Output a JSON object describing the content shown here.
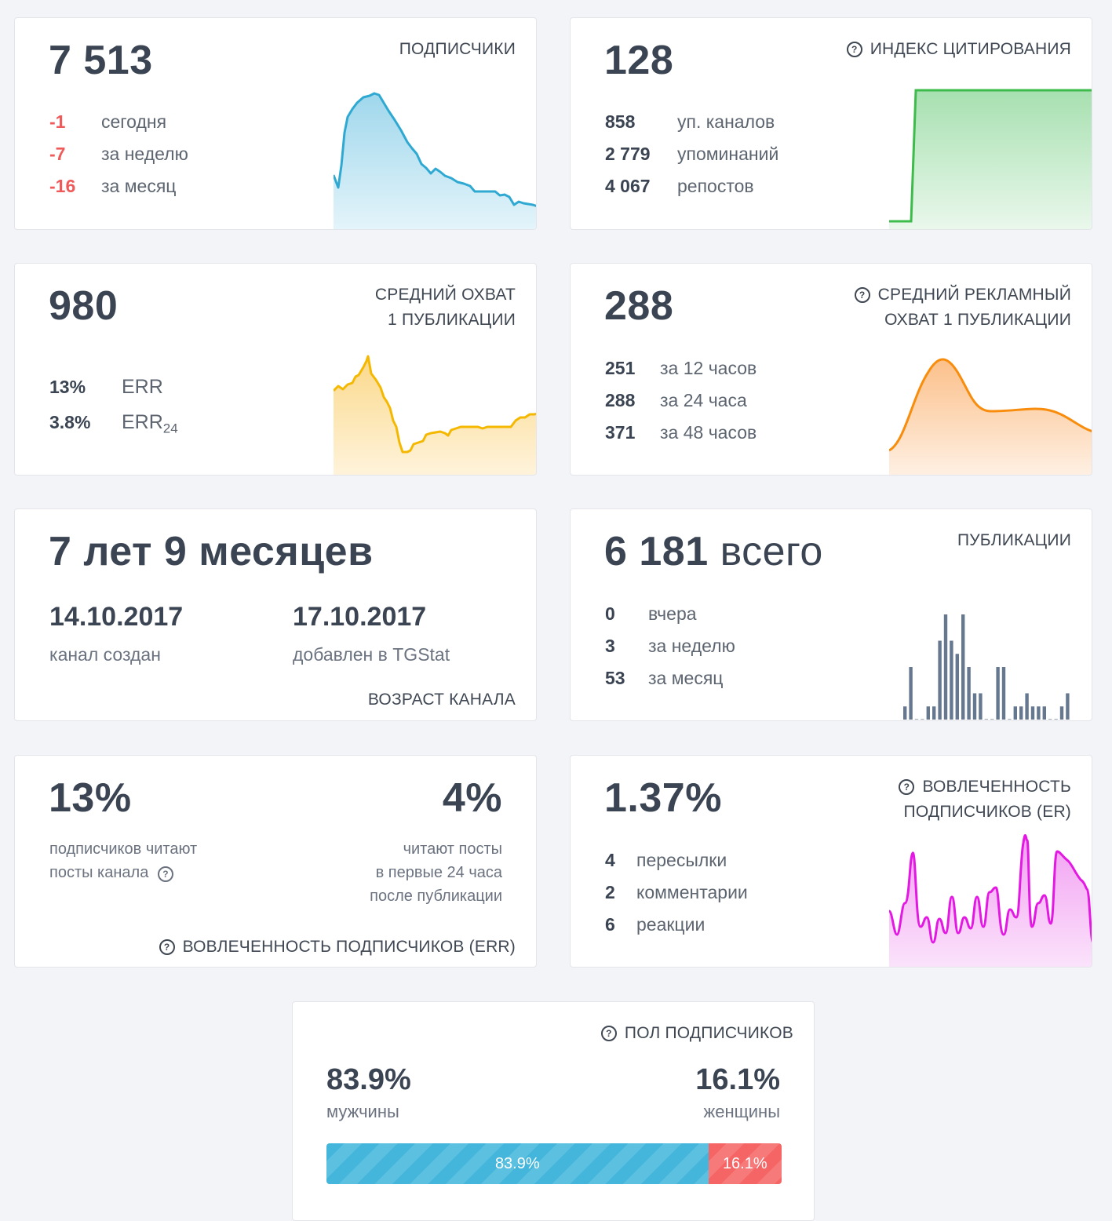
{
  "subscribers": {
    "value": "7 513",
    "title": "ПОДПИСЧИКИ",
    "rows": [
      {
        "n": "-1",
        "label": "сегодня"
      },
      {
        "n": "-7",
        "label": "за неделю"
      },
      {
        "n": "-16",
        "label": "за месяц"
      }
    ],
    "color": "#2fa9d2"
  },
  "citation": {
    "value": "128",
    "title": "ИНДЕКС ЦИТИРОВАНИЯ",
    "rows": [
      {
        "n": "858",
        "label": "уп. каналов"
      },
      {
        "n": "2 779",
        "label": "упоминаний"
      },
      {
        "n": "4 067",
        "label": "репостов"
      }
    ],
    "color": "#3dbb4b"
  },
  "reach": {
    "value": "980",
    "title_line1": "СРЕДНИЙ ОХВАТ",
    "title_line2": "1 ПУБЛИКАЦИИ",
    "rows": [
      {
        "n": "13%",
        "label": "ERR",
        "sub": ""
      },
      {
        "n": "3.8%",
        "label": "ERR",
        "sub": "24"
      }
    ],
    "color": "#f5b800"
  },
  "ad_reach": {
    "value": "288",
    "title_line1": "СРЕДНИЙ РЕКЛАМНЫЙ",
    "title_line2": "ОХВАТ 1 ПУБЛИКАЦИИ",
    "rows": [
      {
        "n": "251",
        "label": "за 12 часов"
      },
      {
        "n": "288",
        "label": "за 24 часа"
      },
      {
        "n": "371",
        "label": "за 48 часов"
      }
    ],
    "color": "#f88d0d"
  },
  "age": {
    "value": "7 лет 9 месяцев",
    "created_date": "14.10.2017",
    "created_label": "канал создан",
    "added_date": "17.10.2017",
    "added_label": "добавлен в TGStat",
    "title": "ВОЗРАСТ КАНАЛА"
  },
  "posts": {
    "value_num": "6 181",
    "value_word": "всего",
    "title": "ПУБЛИКАЦИИ",
    "rows": [
      {
        "n": "0",
        "label": "вчера"
      },
      {
        "n": "3",
        "label": "за неделю"
      },
      {
        "n": "53",
        "label": "за месяц"
      }
    ],
    "bars": [
      1,
      4,
      0,
      0,
      1,
      1,
      6,
      8,
      6,
      5,
      8,
      4,
      2,
      2,
      0,
      0,
      4,
      4,
      0,
      1,
      1,
      2,
      1,
      1,
      1,
      0,
      0,
      1,
      2
    ],
    "color": "#66788f"
  },
  "err": {
    "left_value": "13%",
    "left_label_1": "подписчиков читают",
    "left_label_2": "посты канала",
    "right_value": "4%",
    "right_label_1": "читают посты",
    "right_label_2": "в первые 24 часа",
    "right_label_3": "после публикации",
    "title": "ВОВЛЕЧЕННОСТЬ ПОДПИСЧИКОВ (ERR)"
  },
  "er": {
    "value": "1.37%",
    "title_line1": "ВОВЛЕЧЕННОСТЬ",
    "title_line2": "ПОДПИСЧИКОВ (ER)",
    "rows": [
      {
        "n": "4",
        "label": "пересылки"
      },
      {
        "n": "2",
        "label": "комментарии"
      },
      {
        "n": "6",
        "label": "реакции"
      }
    ],
    "color": "#e319e3"
  },
  "gender": {
    "title": "ПОЛ ПОДПИСЧИКОВ",
    "male_value": "83.9%",
    "male_label": "мужчины",
    "female_value": "16.1%",
    "female_label": "женщины",
    "male_share": 83.9,
    "female_share": 16.1,
    "male_color": "#45b6db",
    "female_color": "#f56565"
  }
}
